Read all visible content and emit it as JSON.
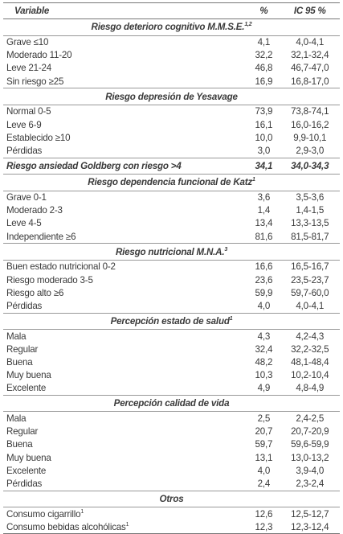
{
  "header": {
    "variable": "Variable",
    "percent": "%",
    "ci": "IC 95 %"
  },
  "sections": [
    {
      "title": "Riesgo deterioro cognitivo M.M.S.E.",
      "note": "1,2",
      "rows": [
        {
          "label": "Grave ≤10",
          "pct": "4,1",
          "ci": "4,0-4,1"
        },
        {
          "label": "Moderado 11-20",
          "pct": "32,2",
          "ci": "32,1-32,4"
        },
        {
          "label": "Leve 21-24",
          "pct": "46,8",
          "ci": "46,7-47,0"
        },
        {
          "label": "Sin riesgo ≥25",
          "pct": "16,9",
          "ci": "16,8-17,0"
        }
      ]
    },
    {
      "title": "Riesgo depresión de Yesavage",
      "rows": [
        {
          "label": "Normal 0-5",
          "pct": "73,9",
          "ci": "73,8-74,1"
        },
        {
          "label": "Leve 6-9",
          "pct": "16,1",
          "ci": "16,0-16,2"
        },
        {
          "label": "Establecido ≥10",
          "pct": "10,0",
          "ci": "9,9-10,1"
        },
        {
          "label": "Pérdidas",
          "pct": "3,0",
          "ci": "2,9-3,0"
        }
      ]
    },
    {
      "title": "Riesgo ansiedad Goldberg con riesgo >4",
      "pct": "34,1",
      "ci": "34,0-34,3"
    },
    {
      "title": "Riesgo dependencia funcional de Katz",
      "note": "1",
      "rows": [
        {
          "label": "Grave 0-1",
          "pct": "3,6",
          "ci": "3,5-3,6"
        },
        {
          "label": "Moderado 2-3",
          "pct": "1,4",
          "ci": "1,4-1,5"
        },
        {
          "label": "Leve 4-5",
          "pct": "13,4",
          "ci": "13,3-13,5"
        },
        {
          "label": "Independiente ≥6",
          "pct": "81,6",
          "ci": "81,5-81,7"
        }
      ]
    },
    {
      "title": "Riesgo nutricional M.N.A.",
      "note": "3",
      "rows": [
        {
          "label": "Buen estado nutricional 0-2",
          "pct": "16,6",
          "ci": "16,5-16,7"
        },
        {
          "label": "Riesgo moderado 3-5",
          "pct": "23,6",
          "ci": "23,5-23,7"
        },
        {
          "label": "Riesgo alto ≥6",
          "pct": "59,9",
          "ci": "59,7-60,0"
        },
        {
          "label": "Pérdidas",
          "pct": "4,0",
          "ci": "4,0-4,1"
        }
      ]
    },
    {
      "title": "Percepción estado de salud",
      "note": "1",
      "rows": [
        {
          "label": "Mala",
          "pct": "4,3",
          "ci": "4,2-4,3"
        },
        {
          "label": "Regular",
          "pct": "32,4",
          "ci": "32,2-32,5"
        },
        {
          "label": "Buena",
          "pct": "48,2",
          "ci": "48,1-48,4"
        },
        {
          "label": "Muy buena",
          "pct": "10,3",
          "ci": "10,2-10,4"
        },
        {
          "label": "Excelente",
          "pct": "4,9",
          "ci": "4,8-4,9"
        }
      ]
    },
    {
      "title": "Percepción calidad de vida",
      "rows": [
        {
          "label": "Mala",
          "pct": "2,5",
          "ci": "2,4-2,5"
        },
        {
          "label": "Regular",
          "pct": "20,7",
          "ci": "20,7-20,9"
        },
        {
          "label": "Buena",
          "pct": "59,7",
          "ci": "59,6-59,9"
        },
        {
          "label": "Muy buena",
          "pct": "13,1",
          "ci": "13,0-13,2"
        },
        {
          "label": "Excelente",
          "pct": "4,0",
          "ci": "3,9-4,0"
        },
        {
          "label": "Pérdidas",
          "pct": "2,4",
          "ci": "2,3-2,4"
        }
      ]
    },
    {
      "title": "Otros",
      "rows": [
        {
          "label": "Consumo cigarrillo",
          "note": "1",
          "pct": "12,6",
          "ci": "12,5-12,7"
        },
        {
          "label": "Consumo bebidas alcohólicas",
          "note": "1",
          "pct": "12,3",
          "ci": "12,3-12,4"
        }
      ]
    }
  ]
}
